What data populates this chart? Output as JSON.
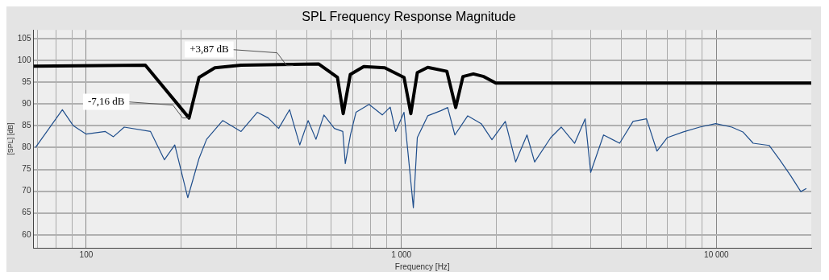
{
  "chart_data": {
    "type": "line",
    "title": "SPL Frequency Response Magnitude",
    "xlabel": "Frequency [Hz]",
    "ylabel": "[SPL] [dB]",
    "log": "x",
    "grid": true,
    "legend": false,
    "marker": "none",
    "line_style": "solid",
    "xlim": [
      68,
      20000
    ],
    "ylim": [
      57,
      107
    ],
    "xticks": [
      {
        "value": 70,
        "label": null
      },
      {
        "value": 80,
        "label": null
      },
      {
        "value": 90,
        "label": null
      },
      {
        "value": 100,
        "label": "100"
      },
      {
        "value": 200,
        "label": null
      },
      {
        "value": 300,
        "label": null
      },
      {
        "value": 400,
        "label": null
      },
      {
        "value": 500,
        "label": null
      },
      {
        "value": 600,
        "label": null
      },
      {
        "value": 700,
        "label": null
      },
      {
        "value": 800,
        "label": null
      },
      {
        "value": 900,
        "label": null
      },
      {
        "value": 1000,
        "label": "1 000"
      },
      {
        "value": 2000,
        "label": null
      },
      {
        "value": 3000,
        "label": null
      },
      {
        "value": 4000,
        "label": null
      },
      {
        "value": 5000,
        "label": null
      },
      {
        "value": 6000,
        "label": null
      },
      {
        "value": 7000,
        "label": null
      },
      {
        "value": 8000,
        "label": null
      },
      {
        "value": 9000,
        "label": null
      },
      {
        "value": 10000,
        "label": "10 000"
      }
    ],
    "yticks": [
      60,
      65,
      70,
      75,
      80,
      85,
      90,
      95,
      100,
      105
    ],
    "series": [
      {
        "color": "#1f4e8c",
        "x": [
          69,
          84,
          91,
          100,
          115,
          122,
          132,
          160,
          177,
          191,
          210,
          228,
          241,
          271,
          310,
          349,
          378,
          408,
          442,
          476,
          506,
          536,
          568,
          613,
          652,
          664,
          690,
          718,
          790,
          870,
          922,
          959,
          1020,
          1050,
          1092,
          1124,
          1213,
          1339,
          1403,
          1479,
          1625,
          1793,
          1939,
          2138,
          2306,
          2505,
          2649,
          2981,
          3217,
          3549,
          3832,
          3990,
          4384,
          4930,
          5438,
          6000,
          6475,
          6989,
          7862,
          8846,
          9949,
          11190,
          12130,
          13080,
          14700,
          15850,
          17190,
          18530,
          19300
        ],
        "values": [
          80,
          88.7,
          85,
          83.1,
          83.7,
          82.5,
          84.7,
          83.7,
          77.2,
          80.6,
          68.5,
          77.5,
          81.9,
          86.2,
          83.7,
          88.1,
          86.8,
          84.4,
          88.7,
          80.6,
          86.2,
          81.9,
          87.5,
          84.4,
          83.7,
          76.3,
          83,
          88.1,
          89.9,
          87.5,
          89.3,
          83.7,
          88.1,
          78.8,
          66.2,
          82.3,
          87.3,
          88.5,
          89.2,
          82.9,
          87.3,
          85.5,
          81.8,
          86,
          76.7,
          82.9,
          76.7,
          82.3,
          84.7,
          81,
          86.6,
          74.3,
          82.9,
          81,
          86,
          86.6,
          79.2,
          82.3,
          83.6,
          84.7,
          85.5,
          84.7,
          83.6,
          81,
          80.5,
          77.3,
          73.6,
          69.9,
          70.6
        ]
      },
      {
        "color": "#000000",
        "x": [
          68,
          154,
          212,
          228,
          256,
          310,
          546,
          627,
          654,
          689,
          760,
          886,
          1020,
          1072,
          1124,
          1213,
          1395,
          1488,
          1569,
          1693,
          1827,
          1995,
          20000
        ],
        "values": [
          98.7,
          98.9,
          86.8,
          96.1,
          98.3,
          98.9,
          99.2,
          96.1,
          87.8,
          96.8,
          98.6,
          98.3,
          96.1,
          87.8,
          97.2,
          98.4,
          97.5,
          89.2,
          96.3,
          96.9,
          96.3,
          94.8,
          94.8
        ]
      }
    ],
    "annotations": [
      {
        "text": "+3,87 dB",
        "x": 454,
        "y": 98.8
      },
      {
        "text": "-7,16 dB",
        "x": 212,
        "y": 86.8
      }
    ]
  }
}
